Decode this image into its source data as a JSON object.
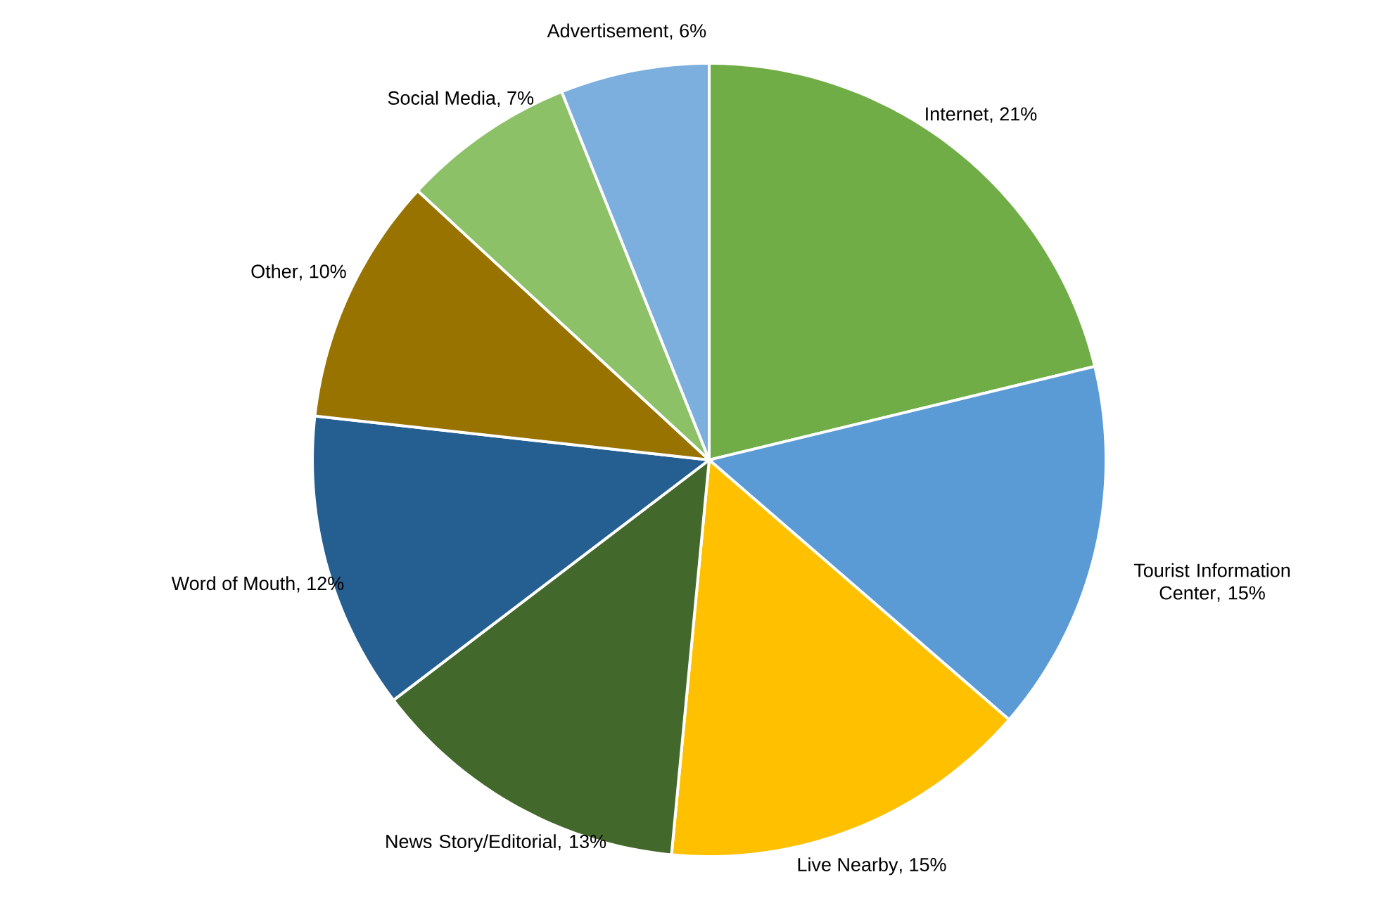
{
  "chart_data": {
    "type": "pie",
    "categories": [
      "Internet",
      "Tourist Information Center",
      "Live Nearby",
      "News Story/Editorial",
      "Word of Mouth",
      "Other",
      "Social Media",
      "Advertisement"
    ],
    "values": [
      21,
      15,
      15,
      13,
      12,
      10,
      7,
      6
    ],
    "value_labels": [
      ", 21%",
      ", 15%",
      ", 15%",
      ", 13%",
      ", 12%",
      ", 10%",
      ", 7%",
      ", 6%"
    ],
    "colors": [
      "#70ad47",
      "#5b9bd5",
      "#ffc000",
      "#43682b",
      "#255e91",
      "#997300",
      "#8cc168",
      "#7cafdd"
    ]
  }
}
